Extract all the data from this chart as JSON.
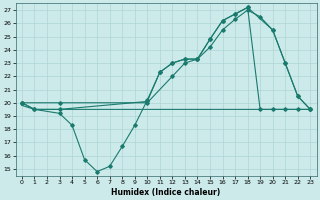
{
  "xlabel": "Humidex (Indice chaleur)",
  "bg_color": "#cceaea",
  "grid_color": "#b0d8d8",
  "line_color": "#1a7a6e",
  "xlim": [
    -0.5,
    23.5
  ],
  "ylim": [
    14.5,
    27.5
  ],
  "xticks": [
    0,
    1,
    2,
    3,
    4,
    5,
    6,
    7,
    8,
    9,
    10,
    11,
    12,
    13,
    14,
    15,
    16,
    17,
    18,
    19,
    20,
    21,
    22,
    23
  ],
  "yticks": [
    15,
    16,
    17,
    18,
    19,
    20,
    21,
    22,
    23,
    24,
    25,
    26,
    27
  ],
  "line1_x": [
    0,
    1,
    2,
    3,
    4,
    5,
    6,
    7,
    8,
    9,
    10,
    11,
    12,
    13,
    14,
    15,
    16,
    17,
    18,
    19,
    20,
    21,
    22,
    23
  ],
  "line1_y": [
    19.8,
    19.5,
    19.5,
    19.5,
    19.5,
    19.5,
    19.5,
    19.5,
    19.5,
    19.5,
    19.5,
    19.5,
    19.5,
    19.5,
    19.5,
    19.5,
    19.5,
    19.5,
    19.5,
    19.5,
    19.5,
    19.5,
    19.5,
    19.5
  ],
  "line2_x": [
    0,
    1,
    3,
    10,
    11,
    12,
    13,
    14,
    15,
    16,
    17,
    18,
    19,
    20,
    21,
    22,
    23
  ],
  "line2_y": [
    20,
    19.5,
    19.5,
    20.1,
    22.3,
    23.0,
    23.3,
    23.3,
    24.8,
    26.2,
    26.7,
    27.2,
    19.5,
    19.5,
    19.5,
    19.5,
    19.5
  ],
  "line3_x": [
    0,
    1,
    3,
    4,
    5,
    6,
    7,
    8,
    9,
    10,
    11,
    12,
    13,
    14,
    15,
    16,
    17,
    18,
    20,
    21,
    22,
    23
  ],
  "line3_y": [
    20,
    19.5,
    19.2,
    18.3,
    15.7,
    14.8,
    15.2,
    16.7,
    18.3,
    20.2,
    22.3,
    23.0,
    23.3,
    23.3,
    24.8,
    26.2,
    26.7,
    27.2,
    25.5,
    23.0,
    20.5,
    19.5
  ],
  "line4_x": [
    0,
    3,
    10,
    12,
    13,
    14,
    15,
    16,
    17,
    18,
    19,
    20,
    21,
    22,
    23
  ],
  "line4_y": [
    20,
    20,
    20,
    22,
    23,
    23.3,
    24.2,
    25.5,
    26.3,
    27.0,
    26.5,
    25.5,
    23.0,
    20.5,
    19.5
  ]
}
